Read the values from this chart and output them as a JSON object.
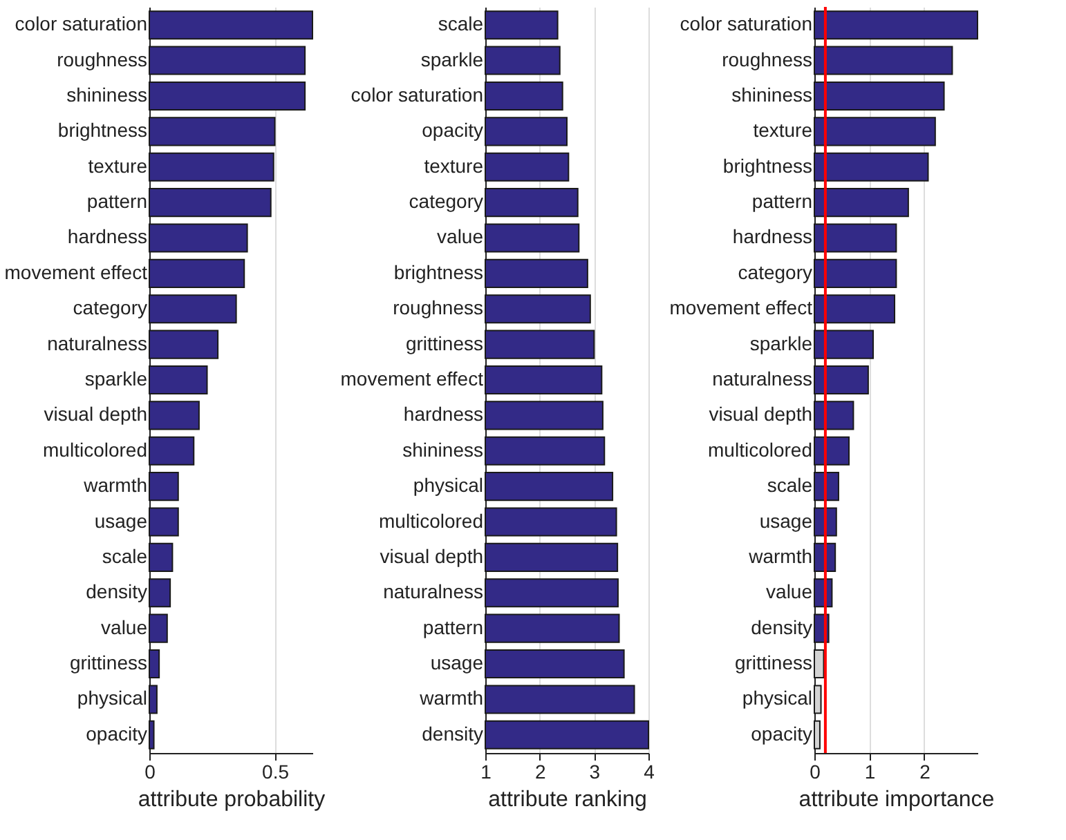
{
  "chart_data": [
    {
      "type": "bar",
      "orientation": "horizontal",
      "xlabel": "attribute probability",
      "categories": [
        "color saturation",
        "roughness",
        "shininess",
        "brightness",
        "texture",
        "pattern",
        "hardness",
        "movement effect",
        "category",
        "naturalness",
        "sparkle",
        "visual depth",
        "multicolored",
        "warmth",
        "usage",
        "scale",
        "density",
        "value",
        "grittiness",
        "physical",
        "opacity"
      ],
      "values": [
        0.65,
        0.62,
        0.62,
        0.5,
        0.495,
        0.484,
        0.39,
        0.378,
        0.346,
        0.273,
        0.23,
        0.198,
        0.177,
        0.115,
        0.115,
        0.092,
        0.083,
        0.071,
        0.039,
        0.03,
        0.018
      ],
      "color": "#332a87",
      "xlim": [
        0,
        0.65
      ],
      "xticks": [
        0,
        0.5
      ],
      "grid": "x"
    },
    {
      "type": "bar",
      "orientation": "horizontal",
      "xlabel": "attribute ranking",
      "categories": [
        "scale",
        "sparkle",
        "color saturation",
        "opacity",
        "texture",
        "category",
        "value",
        "brightness",
        "roughness",
        "grittiness",
        "movement effect",
        "hardness",
        "shininess",
        "physical",
        "multicolored",
        "visual depth",
        "naturalness",
        "pattern",
        "usage",
        "warmth",
        "density"
      ],
      "values": [
        2.33,
        2.37,
        2.42,
        2.5,
        2.53,
        2.7,
        2.72,
        2.88,
        2.93,
        3.0,
        3.14,
        3.16,
        3.19,
        3.34,
        3.41,
        3.43,
        3.44,
        3.46,
        3.55,
        3.74,
        4.0
      ],
      "color": "#332a87",
      "xlim": [
        1,
        4
      ],
      "xticks": [
        1,
        2,
        3,
        4
      ],
      "grid": "x"
    },
    {
      "type": "bar",
      "orientation": "horizontal",
      "xlabel": "attribute importance",
      "categories": [
        "color saturation",
        "roughness",
        "shininess",
        "texture",
        "brightness",
        "pattern",
        "hardness",
        "category",
        "movement effect",
        "sparkle",
        "naturalness",
        "visual depth",
        "multicolored",
        "scale",
        "usage",
        "warmth",
        "value",
        "density",
        "grittiness",
        "physical",
        "opacity"
      ],
      "values": [
        2.97,
        2.51,
        2.36,
        2.2,
        2.07,
        1.71,
        1.49,
        1.49,
        1.46,
        1.07,
        0.98,
        0.71,
        0.63,
        0.44,
        0.4,
        0.38,
        0.32,
        0.26,
        0.17,
        0.12,
        0.1
      ],
      "colors": [
        "#332a87",
        "#332a87",
        "#332a87",
        "#332a87",
        "#332a87",
        "#332a87",
        "#332a87",
        "#332a87",
        "#332a87",
        "#332a87",
        "#332a87",
        "#332a87",
        "#332a87",
        "#332a87",
        "#332a87",
        "#332a87",
        "#332a87",
        "#332a87",
        "#d3d3d3",
        "#d3d3d3",
        "#d3d3d3"
      ],
      "xlim": [
        0,
        2.97
      ],
      "xticks": [
        0,
        1,
        2
      ],
      "grid": "x",
      "ref_lines": [
        {
          "axis": "x",
          "value": 0.2,
          "color": "#ff0000"
        }
      ]
    }
  ]
}
